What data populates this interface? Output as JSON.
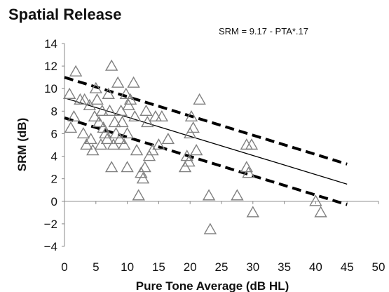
{
  "chart_data": {
    "type": "scatter",
    "title": "Spatial Release",
    "annotation": "SRM = 9.17 - PTA*.17",
    "xlabel": "Pure Tone Average (dB HL)",
    "ylabel": "SRM (dB)",
    "xlim": [
      0,
      50
    ],
    "ylim": [
      -4,
      14
    ],
    "xticks": [
      "0",
      "5",
      "10",
      "15",
      "20",
      "25",
      "30",
      "35",
      "40",
      "45",
      "50"
    ],
    "yticks": [
      "14",
      "12",
      "10",
      "8",
      "6",
      "4",
      "2",
      "0",
      "−2",
      "−4"
    ],
    "grid": false,
    "marker": "open-triangle",
    "marker_color": "#808080",
    "line_color": "#000000",
    "points": [
      {
        "x": 0.8,
        "y": 9.5
      },
      {
        "x": 1,
        "y": 6.5
      },
      {
        "x": 1.5,
        "y": 7.5
      },
      {
        "x": 1.8,
        "y": 11.5
      },
      {
        "x": 2.5,
        "y": 9
      },
      {
        "x": 3,
        "y": 6
      },
      {
        "x": 3.2,
        "y": 9
      },
      {
        "x": 3.5,
        "y": 5
      },
      {
        "x": 4,
        "y": 8.5
      },
      {
        "x": 4.2,
        "y": 5.5
      },
      {
        "x": 4.5,
        "y": 4.5
      },
      {
        "x": 4.8,
        "y": 7.5
      },
      {
        "x": 5,
        "y": 10
      },
      {
        "x": 5.2,
        "y": 9
      },
      {
        "x": 5.5,
        "y": 7
      },
      {
        "x": 5.8,
        "y": 5
      },
      {
        "x": 6,
        "y": 8
      },
      {
        "x": 6.2,
        "y": 6.5
      },
      {
        "x": 6.5,
        "y": 6
      },
      {
        "x": 6.8,
        "y": 5.5
      },
      {
        "x": 7,
        "y": 9.5
      },
      {
        "x": 7.2,
        "y": 8
      },
      {
        "x": 7.5,
        "y": 12
      },
      {
        "x": 7.5,
        "y": 3
      },
      {
        "x": 7.8,
        "y": 5
      },
      {
        "x": 8,
        "y": 7
      },
      {
        "x": 8.2,
        "y": 6
      },
      {
        "x": 8.5,
        "y": 10.5
      },
      {
        "x": 8.8,
        "y": 5.5
      },
      {
        "x": 9,
        "y": 8
      },
      {
        "x": 9.2,
        "y": 7
      },
      {
        "x": 9.5,
        "y": 5
      },
      {
        "x": 9.8,
        "y": 9.5
      },
      {
        "x": 10,
        "y": 3
      },
      {
        "x": 10,
        "y": 6
      },
      {
        "x": 10.2,
        "y": 8.5
      },
      {
        "x": 10.5,
        "y": 9
      },
      {
        "x": 11,
        "y": 10.5
      },
      {
        "x": 11.2,
        "y": 7.5
      },
      {
        "x": 11.5,
        "y": 4.5
      },
      {
        "x": 11.8,
        "y": 0.5
      },
      {
        "x": 12.2,
        "y": 2.5
      },
      {
        "x": 12.5,
        "y": 2
      },
      {
        "x": 12.8,
        "y": 3
      },
      {
        "x": 13,
        "y": 8
      },
      {
        "x": 13.2,
        "y": 7
      },
      {
        "x": 13.5,
        "y": 4
      },
      {
        "x": 14,
        "y": 4.5
      },
      {
        "x": 14.5,
        "y": 7.5
      },
      {
        "x": 15,
        "y": 5
      },
      {
        "x": 15.5,
        "y": 7.5
      },
      {
        "x": 16.5,
        "y": 5.5
      },
      {
        "x": 19.2,
        "y": 3
      },
      {
        "x": 19.5,
        "y": 4
      },
      {
        "x": 19.8,
        "y": 3.5
      },
      {
        "x": 20,
        "y": 6
      },
      {
        "x": 20.2,
        "y": 7.5
      },
      {
        "x": 20.5,
        "y": 6.5
      },
      {
        "x": 21,
        "y": 4.5
      },
      {
        "x": 21.5,
        "y": 9
      },
      {
        "x": 23,
        "y": 0.5
      },
      {
        "x": 23.2,
        "y": -2.5
      },
      {
        "x": 27.5,
        "y": 0.5
      },
      {
        "x": 29,
        "y": 5
      },
      {
        "x": 29,
        "y": 3
      },
      {
        "x": 29.3,
        "y": 2.5
      },
      {
        "x": 29.8,
        "y": 5
      },
      {
        "x": 30,
        "y": -1
      },
      {
        "x": 40,
        "y": 0
      },
      {
        "x": 40.8,
        "y": -1
      }
    ],
    "lines": [
      {
        "style": "solid",
        "x": [
          0,
          45
        ],
        "y": [
          9.17,
          1.52
        ]
      },
      {
        "style": "dashed",
        "x": [
          0,
          45
        ],
        "y": [
          11,
          3.3
        ]
      },
      {
        "style": "dashed",
        "x": [
          0,
          45
        ],
        "y": [
          7.4,
          -0.3
        ]
      }
    ]
  }
}
